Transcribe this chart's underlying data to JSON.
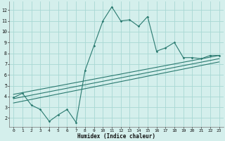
{
  "xlabel": "Humidex (Indice chaleur)",
  "bg_color": "#d4efec",
  "grid_color": "#a8d8d4",
  "line_color": "#2a7a70",
  "xlim": [
    -0.5,
    23.5
  ],
  "ylim": [
    1.2,
    12.8
  ],
  "yticks": [
    2,
    3,
    4,
    5,
    6,
    7,
    8,
    9,
    10,
    11,
    12
  ],
  "xticks": [
    0,
    1,
    2,
    3,
    4,
    5,
    6,
    7,
    8,
    9,
    10,
    11,
    12,
    13,
    14,
    15,
    16,
    17,
    18,
    19,
    20,
    21,
    22,
    23
  ],
  "series1_x": [
    0,
    1,
    2,
    3,
    4,
    5,
    6,
    7,
    8,
    9,
    10,
    11,
    12,
    13,
    14,
    15,
    16,
    17,
    18,
    19,
    20,
    21,
    22,
    23
  ],
  "series1_y": [
    3.9,
    4.3,
    3.2,
    2.8,
    1.7,
    2.3,
    2.8,
    1.6,
    6.4,
    8.7,
    11.0,
    12.3,
    11.0,
    11.1,
    10.5,
    11.4,
    8.2,
    8.5,
    9.0,
    7.6,
    7.6,
    7.5,
    7.8,
    7.8
  ],
  "line1_x": [
    0,
    23
  ],
  "line1_y": [
    3.8,
    7.5
  ],
  "line2_x": [
    0,
    23
  ],
  "line2_y": [
    3.4,
    7.2
  ],
  "line3_x": [
    0,
    23
  ],
  "line3_y": [
    4.2,
    7.8
  ]
}
